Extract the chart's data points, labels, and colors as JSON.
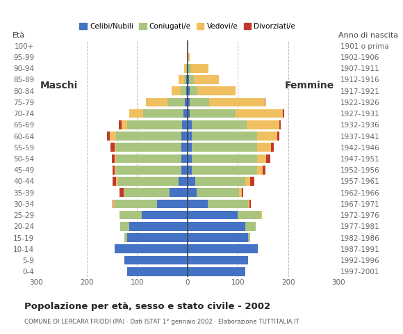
{
  "age_groups": [
    "0-4",
    "5-9",
    "10-14",
    "15-19",
    "20-24",
    "25-29",
    "30-34",
    "35-39",
    "40-44",
    "45-49",
    "50-54",
    "55-59",
    "60-64",
    "65-69",
    "70-74",
    "75-79",
    "80-84",
    "85-89",
    "90-94",
    "95-99",
    "100+"
  ],
  "birth_years": [
    "1997-2001",
    "1992-1996",
    "1987-1991",
    "1982-1986",
    "1977-1981",
    "1972-1976",
    "1967-1971",
    "1962-1966",
    "1957-1961",
    "1952-1956",
    "1947-1951",
    "1942-1946",
    "1937-1941",
    "1932-1936",
    "1927-1931",
    "1922-1926",
    "1917-1921",
    "1912-1916",
    "1907-1911",
    "1902-1906",
    "1901 o prima"
  ],
  "males_celibe": [
    120,
    125,
    145,
    120,
    115,
    90,
    60,
    35,
    18,
    12,
    12,
    12,
    12,
    10,
    8,
    5,
    3,
    2,
    0,
    0,
    0
  ],
  "males_coniugato": [
    0,
    0,
    0,
    5,
    18,
    45,
    85,
    90,
    120,
    130,
    130,
    130,
    130,
    110,
    80,
    35,
    10,
    5,
    2,
    0,
    0
  ],
  "males_vedovo": [
    0,
    0,
    0,
    0,
    0,
    0,
    2,
    2,
    3,
    3,
    3,
    3,
    12,
    10,
    28,
    42,
    18,
    10,
    5,
    0,
    0
  ],
  "males_divorziato": [
    0,
    0,
    0,
    0,
    0,
    0,
    2,
    8,
    8,
    3,
    5,
    8,
    5,
    6,
    0,
    0,
    0,
    0,
    0,
    0,
    0
  ],
  "females_nubile": [
    115,
    120,
    140,
    120,
    115,
    100,
    40,
    18,
    15,
    8,
    8,
    8,
    8,
    8,
    5,
    5,
    5,
    3,
    2,
    0,
    0
  ],
  "females_coniugata": [
    0,
    0,
    0,
    5,
    20,
    45,
    80,
    85,
    100,
    130,
    130,
    130,
    130,
    110,
    90,
    38,
    15,
    10,
    5,
    2,
    0
  ],
  "females_vedova": [
    0,
    0,
    0,
    0,
    0,
    3,
    3,
    5,
    10,
    12,
    18,
    28,
    40,
    65,
    95,
    110,
    75,
    50,
    35,
    3,
    0
  ],
  "females_divorziata": [
    0,
    0,
    0,
    0,
    0,
    0,
    3,
    3,
    8,
    5,
    8,
    5,
    5,
    2,
    2,
    2,
    0,
    0,
    0,
    0,
    0
  ],
  "color_celibe": "#4472c4",
  "color_coniugato": "#a9c47f",
  "color_vedovo": "#f0c060",
  "color_divorziato": "#c0392b",
  "title": "Popolazione per età, sesso e stato civile - 2002",
  "subtitle": "COMUNE DI LERCARA FRIDDI (PA) · Dati ISTAT 1° gennaio 2002 · Elaborazione TUTTITALIA.IT",
  "label_maschi": "Maschi",
  "label_femmine": "Femmine",
  "label_eta": "Età",
  "label_anno": "Anno di nascita",
  "xlim": 300,
  "legend_labels": [
    "Celibi/Nubili",
    "Coniugati/e",
    "Vedovi/e",
    "Divorziati/e"
  ]
}
